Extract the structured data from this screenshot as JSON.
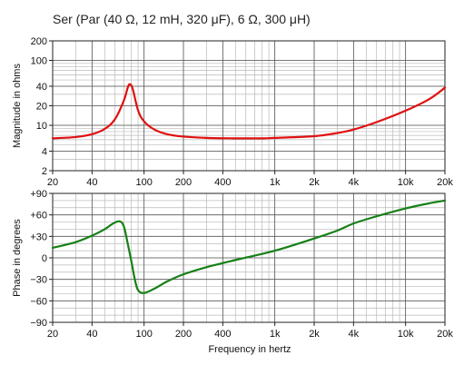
{
  "chart_data": [
    {
      "type": "line",
      "title": "Ser (Par (40 Ω, 12 mH, 320 μF), 6 Ω, 300 μH)",
      "xlabel": "",
      "ylabel": "Magnitude in ohms",
      "x_scale": "log",
      "y_scale": "log",
      "xlim": [
        20,
        20000
      ],
      "ylim": [
        2,
        200
      ],
      "x_ticks": [
        20,
        40,
        100,
        200,
        400,
        1000,
        2000,
        4000,
        10000,
        20000
      ],
      "x_tick_labels": [
        "20",
        "40",
        "100",
        "200",
        "400",
        "1k",
        "2k",
        "4k",
        "10k",
        "20k"
      ],
      "y_ticks": [
        2,
        4,
        10,
        20,
        40,
        100,
        200
      ],
      "y_tick_labels": [
        "2",
        "4",
        "10",
        "20",
        "40",
        "100",
        "200"
      ],
      "grid": true,
      "series": [
        {
          "color": "#e01010",
          "points": [
            [
              20,
              6.3
            ],
            [
              30,
              6.6
            ],
            [
              40,
              7.3
            ],
            [
              50,
              8.8
            ],
            [
              60,
              12.5
            ],
            [
              70,
              24
            ],
            [
              75,
              38
            ],
            [
              78,
              43
            ],
            [
              82,
              36
            ],
            [
              90,
              17
            ],
            [
              100,
              11.5
            ],
            [
              120,
              8.6
            ],
            [
              150,
              7.3
            ],
            [
              200,
              6.7
            ],
            [
              300,
              6.4
            ],
            [
              500,
              6.3
            ],
            [
              800,
              6.3
            ],
            [
              1000,
              6.4
            ],
            [
              2000,
              6.8
            ],
            [
              3000,
              7.6
            ],
            [
              4000,
              8.6
            ],
            [
              6000,
              11.2
            ],
            [
              10000,
              16.8
            ],
            [
              15000,
              25
            ],
            [
              20000,
              38
            ]
          ]
        }
      ]
    },
    {
      "type": "line",
      "title": "",
      "xlabel": "Frequency in hertz",
      "ylabel": "Phase in degrees",
      "x_scale": "log",
      "xlim": [
        20,
        20000
      ],
      "ylim": [
        -90,
        90
      ],
      "x_ticks": [
        20,
        40,
        100,
        200,
        400,
        1000,
        2000,
        4000,
        10000,
        20000
      ],
      "x_tick_labels": [
        "20",
        "40",
        "100",
        "200",
        "400",
        "1k",
        "2k",
        "4k",
        "10k",
        "20k"
      ],
      "y_ticks": [
        90,
        60,
        30,
        0,
        -30,
        -60,
        -90
      ],
      "y_tick_labels": [
        "+90",
        "+60",
        "+30",
        "0",
        "−30",
        "−60",
        "−90"
      ],
      "grid": true,
      "series": [
        {
          "color": "#168016",
          "points": [
            [
              20,
              14
            ],
            [
              30,
              22
            ],
            [
              40,
              31
            ],
            [
              50,
              40
            ],
            [
              58,
              48
            ],
            [
              65,
              51
            ],
            [
              70,
              44
            ],
            [
              75,
              20
            ],
            [
              80,
              -5
            ],
            [
              85,
              -30
            ],
            [
              90,
              -45
            ],
            [
              100,
              -49
            ],
            [
              120,
              -43
            ],
            [
              150,
              -33
            ],
            [
              200,
              -23
            ],
            [
              300,
              -13
            ],
            [
              500,
              -3
            ],
            [
              1000,
              10
            ],
            [
              2000,
              27
            ],
            [
              3000,
              38
            ],
            [
              4000,
              48
            ],
            [
              6000,
              58
            ],
            [
              10000,
              69
            ],
            [
              15000,
              76
            ],
            [
              20000,
              80
            ]
          ]
        }
      ]
    }
  ]
}
